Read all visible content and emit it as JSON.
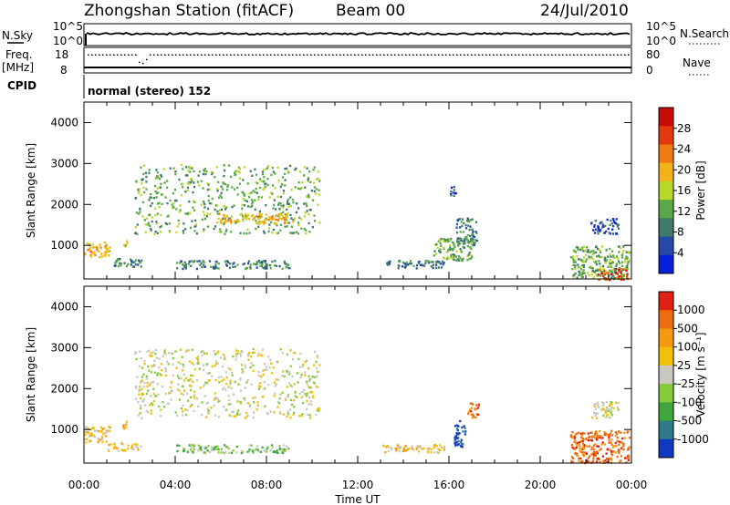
{
  "header": {
    "title": "Zhongshan Station (fitACF)",
    "beam": "Beam 00",
    "date": "24/Jul/2010"
  },
  "top_panels": {
    "nsky_label": "N.Sky",
    "nsky_ticks": [
      "10^5",
      "10^0"
    ],
    "nsearch_label": "N.Search",
    "nsearch_ticks": [
      "10^5",
      "10^0"
    ],
    "freq_label_1": "Freq.",
    "freq_label_2": "[MHz]",
    "freq_ticks": [
      "18",
      "8"
    ],
    "nave_label": "Nave",
    "nave_ticks": [
      "80",
      "0"
    ],
    "cpid_label": "CPID",
    "cpid_text": "normal (stereo) 152"
  },
  "chart_data": [
    {
      "type": "heatmap",
      "name": "power",
      "ylabel": "Slant Range [km]",
      "yticks": [
        "4000",
        "3000",
        "2000",
        "1000"
      ],
      "ylim": [
        180,
        4500
      ],
      "xlim": [
        0,
        24
      ],
      "colorbar_label": "Power [dB]",
      "colorbar_ticks": [
        "28",
        "24",
        "20",
        "16",
        "12",
        "8",
        "4"
      ],
      "colors": [
        "#0a1fd8",
        "#2848a8",
        "#3f7a6a",
        "#5aa84a",
        "#b8d82a",
        "#f2b21a",
        "#f07a12",
        "#e23a0e",
        "#c80a0a"
      ],
      "regions": [
        {
          "t": [
            0.0,
            1.1
          ],
          "r": [
            700,
            1100
          ],
          "v": 5
        },
        {
          "t": [
            1.7,
            1.9
          ],
          "r": [
            1000,
            1250
          ],
          "v": 4
        },
        {
          "t": [
            1.0,
            2.5
          ],
          "r": [
            500,
            700
          ],
          "v": 2
        },
        {
          "t": [
            2.2,
            10.3
          ],
          "r": [
            1300,
            3000
          ],
          "v": 3
        },
        {
          "t": [
            5.8,
            9.2
          ],
          "r": [
            1550,
            1800
          ],
          "v": 5
        },
        {
          "t": [
            4.0,
            9.0
          ],
          "r": [
            450,
            650
          ],
          "v": 2
        },
        {
          "t": [
            13.0,
            15.8
          ],
          "r": [
            450,
            650
          ],
          "v": 2
        },
        {
          "t": [
            15.3,
            17.0
          ],
          "r": [
            650,
            1200
          ],
          "v": 3
        },
        {
          "t": [
            16.3,
            17.2
          ],
          "r": [
            1000,
            1700
          ],
          "v": 2
        },
        {
          "t": [
            16.0,
            16.3
          ],
          "r": [
            2200,
            2500
          ],
          "v": 1
        },
        {
          "t": [
            21.3,
            23.9
          ],
          "r": [
            200,
            1000
          ],
          "v": 3
        },
        {
          "t": [
            22.5,
            23.8
          ],
          "r": [
            180,
            450
          ],
          "v": 7
        },
        {
          "t": [
            22.2,
            23.4
          ],
          "r": [
            1300,
            1700
          ],
          "v": 1
        }
      ]
    },
    {
      "type": "heatmap",
      "name": "velocity",
      "ylabel": "Slant Range [km]",
      "yticks": [
        "4000",
        "3000",
        "2000",
        "1000"
      ],
      "ylim": [
        180,
        4500
      ],
      "xlim": [
        0,
        24
      ],
      "xticks": [
        "00:00",
        "04:00",
        "08:00",
        "12:00",
        "16:00",
        "20:00",
        "00:00"
      ],
      "xlabel": "Time UT",
      "colorbar_label": "Velocity [m s⁻¹]",
      "colorbar_ticks": [
        "1000",
        "500",
        "100",
        "25",
        "-25",
        "-100",
        "-500",
        "-1000"
      ],
      "colors": [
        "#1038c0",
        "#2f7a88",
        "#3fa83a",
        "#86cc3a",
        "#c8c8c0",
        "#f2c00a",
        "#f59a10",
        "#f06a10",
        "#e02010"
      ],
      "regions": [
        {
          "t": [
            0.0,
            1.1
          ],
          "r": [
            700,
            1100
          ],
          "v": 5
        },
        {
          "t": [
            1.7,
            1.9
          ],
          "r": [
            1000,
            1250
          ],
          "v": 6
        },
        {
          "t": [
            1.0,
            2.5
          ],
          "r": [
            500,
            700
          ],
          "v": 5
        },
        {
          "t": [
            2.2,
            10.3
          ],
          "r": [
            1300,
            3000
          ],
          "v": 4
        },
        {
          "t": [
            4.0,
            9.0
          ],
          "r": [
            450,
            650
          ],
          "v": 3
        },
        {
          "t": [
            13.0,
            15.8
          ],
          "r": [
            450,
            650
          ],
          "v": 5
        },
        {
          "t": [
            16.2,
            16.7
          ],
          "r": [
            600,
            1300
          ],
          "v": 0
        },
        {
          "t": [
            16.8,
            17.3
          ],
          "r": [
            1300,
            1700
          ],
          "v": 7
        },
        {
          "t": [
            21.3,
            23.9
          ],
          "r": [
            200,
            1000
          ],
          "v": 7
        },
        {
          "t": [
            22.2,
            23.4
          ],
          "r": [
            1300,
            1700
          ],
          "v": 4
        }
      ]
    }
  ]
}
